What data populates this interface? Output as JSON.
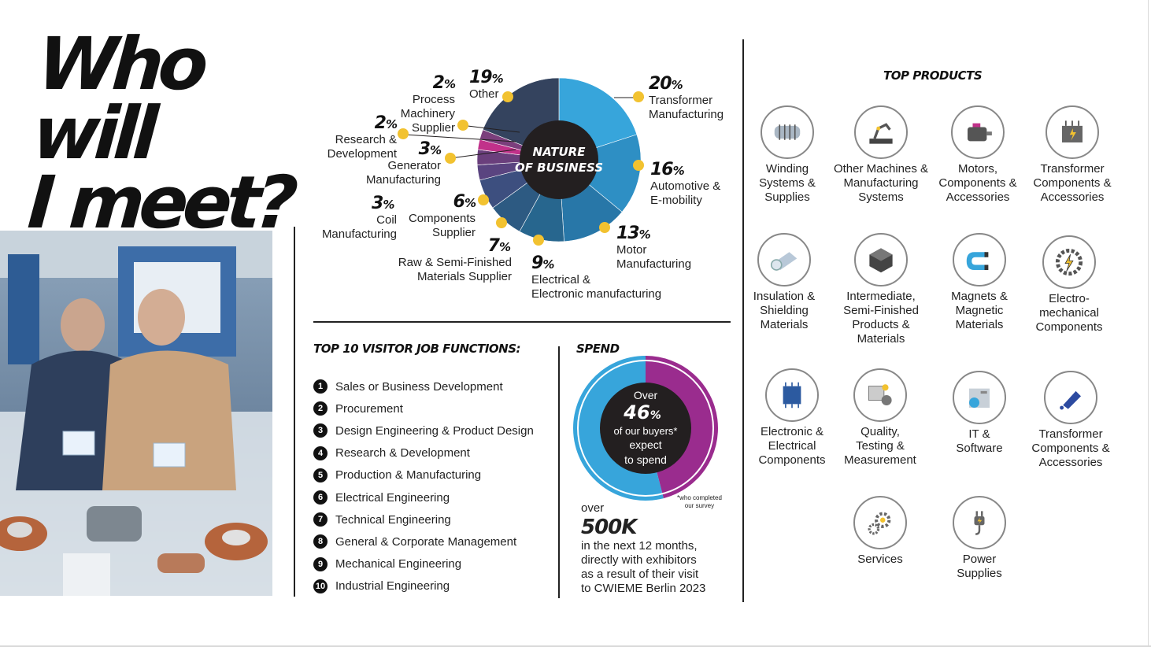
{
  "headline": {
    "line1": "Who will",
    "line2": "I meet?"
  },
  "colors": {
    "accent_yellow": "#f2c230",
    "donut_blue": "#37a5db",
    "donut_purple": "#9a2c8e",
    "donut_center": "#231f20"
  },
  "chart_data": [
    {
      "type": "pie",
      "title": "NATURE OF BUSINESS",
      "title_lines": [
        "NATURE",
        "OF BUSINESS"
      ],
      "categories": [
        "Transformer Manufacturing",
        "Automotive & E-mobility",
        "Motor Manufacturing",
        "Electrical & Electronic manufacturing",
        "Raw & Semi-Finished Materials Supplier",
        "Components Supplier",
        "Coil Manufacturing",
        "Generator Manufacturing",
        "Research & Development",
        "Process Machinery Supplier",
        "Other"
      ],
      "values": [
        20,
        16,
        13,
        9,
        7,
        6,
        3,
        3,
        2,
        2,
        19
      ],
      "value_labels": [
        "20",
        "16",
        "13",
        "9",
        "7",
        "6",
        "3",
        "3",
        "2",
        "2",
        "19"
      ],
      "unit": "%",
      "segment_colors": [
        "#37a5db",
        "#2e8fc4",
        "#2877a8",
        "#27668e",
        "#2d5a82",
        "#3d4f7f",
        "#5a4480",
        "#6a3f7c",
        "#c1318a",
        "#7b3f7c",
        "#34435e"
      ],
      "label_lines": [
        [
          "Transformer",
          "Manufacturing"
        ],
        [
          "Automotive &",
          "E-mobility"
        ],
        [
          "Motor",
          "Manufacturing"
        ],
        [
          "Electrical &",
          "Electronic manufacturing"
        ],
        [
          "Raw & Semi-Finished",
          "Materials Supplier"
        ],
        [
          "Components",
          "Supplier"
        ],
        [
          "Coil",
          "Manufacturing"
        ],
        [
          "Generator",
          "Manufacturing"
        ],
        [
          "Research &",
          "Development"
        ],
        [
          "Process",
          "Machinery",
          "Supplier"
        ],
        [
          "Other"
        ]
      ]
    },
    {
      "type": "pie",
      "title": "SPEND",
      "categories": [
        "buyers expecting to spend over 500K",
        "other"
      ],
      "values": [
        46,
        54
      ],
      "segment_colors": [
        "#9a2c8e",
        "#37a5db"
      ],
      "center_text": {
        "line1": "Over",
        "value": "46",
        "unit": "%",
        "line3": "of our buyers*",
        "line4": "expect",
        "line5": "to spend"
      },
      "footnote": [
        "*who completed",
        "our survey"
      ]
    }
  ],
  "spend_caption": {
    "over": "over",
    "amount": "500K",
    "lines": [
      "in the next 12 months,",
      "directly with exhibitors",
      "as a result of their visit",
      "to CWIEME Berlin 2023"
    ]
  },
  "job_functions": {
    "title": "TOP 10 VISITOR JOB FUNCTIONS:",
    "items": [
      {
        "n": "1",
        "label": "Sales or Business Development"
      },
      {
        "n": "2",
        "label": "Procurement"
      },
      {
        "n": "3",
        "label": "Design Engineering & Product Design"
      },
      {
        "n": "4",
        "label": "Research & Development"
      },
      {
        "n": "5",
        "label": "Production & Manufacturing"
      },
      {
        "n": "6",
        "label": "Electrical Engineering"
      },
      {
        "n": "7",
        "label": "Technical Engineering"
      },
      {
        "n": "8",
        "label": "General & Corporate Management"
      },
      {
        "n": "9",
        "label": "Mechanical Engineering"
      },
      {
        "n": "10",
        "label": "Industrial Engineering"
      }
    ]
  },
  "top_products": {
    "title": "TOP PRODUCTS",
    "items": [
      {
        "icon": "coil-icon",
        "lines": [
          "Winding",
          "Systems &",
          "Supplies"
        ]
      },
      {
        "icon": "robot-arm-icon",
        "lines": [
          "Other Machines &",
          "Manufacturing",
          "Systems"
        ]
      },
      {
        "icon": "motor-icon",
        "lines": [
          "Motors,",
          "Components &",
          "Accessories"
        ]
      },
      {
        "icon": "transformer-icon",
        "lines": [
          "Transformer",
          "Components &",
          "Accessories"
        ]
      },
      {
        "icon": "insulation-roll-icon",
        "lines": [
          "Insulation &",
          "Shielding",
          "Materials"
        ]
      },
      {
        "icon": "cube-icon",
        "lines": [
          "Intermediate,",
          "Semi-Finished",
          "Products &",
          "Materials"
        ]
      },
      {
        "icon": "magnet-icon",
        "lines": [
          "Magnets &",
          "Magnetic",
          "Materials"
        ]
      },
      {
        "icon": "gear-lightning-icon",
        "lines": [
          "Electro-",
          "mechanical",
          "Components"
        ]
      },
      {
        "icon": "chip-icon",
        "lines": [
          "Electronic &",
          "Electrical",
          "Components"
        ]
      },
      {
        "icon": "quality-testing-icon",
        "lines": [
          "Quality,",
          "Testing &",
          "Measurement"
        ]
      },
      {
        "icon": "software-icon",
        "lines": [
          "IT &",
          "Software"
        ]
      },
      {
        "icon": "glue-applicator-icon",
        "lines": [
          "Transformer",
          "Components &",
          "Accessories"
        ]
      },
      {
        "icon": "gears-icon",
        "lines": [
          "Services"
        ]
      },
      {
        "icon": "power-plug-icon",
        "lines": [
          "Power",
          "Supplies"
        ]
      }
    ]
  }
}
